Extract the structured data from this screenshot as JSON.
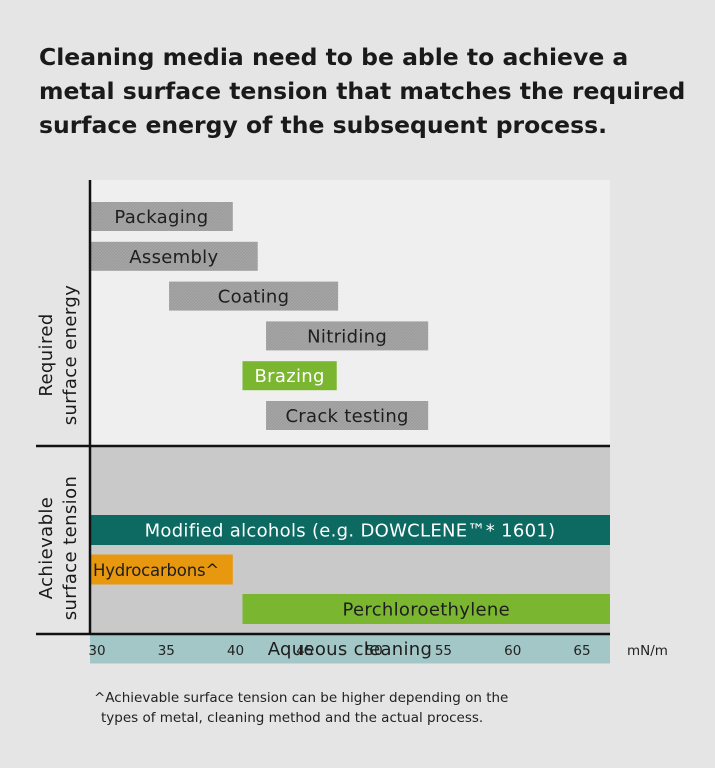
{
  "title": {
    "lines": [
      "Cleaning media need to be able to achieve a",
      "metal surface tension that matches the required",
      "surface energy of the subsequent process."
    ]
  },
  "chart_data": {
    "type": "bar",
    "orientation": "horizontal-range",
    "x_unit": "mN/m",
    "x_ticks": [
      30,
      35,
      40,
      45,
      50,
      55,
      60,
      65
    ],
    "xlim": [
      29.5,
      67
    ],
    "panels": [
      {
        "name": "Required surface energy",
        "label_lines": [
          "Required",
          "surface energy"
        ],
        "bars": [
          {
            "label": "Packaging",
            "start": 29.5,
            "end": 39.8,
            "color": "#9c9c9c"
          },
          {
            "label": "Assembly",
            "start": 29.5,
            "end": 41.6,
            "color": "#9c9c9c"
          },
          {
            "label": "Coating",
            "start": 35.2,
            "end": 47.4,
            "color": "#9c9c9c"
          },
          {
            "label": "Nitriding",
            "start": 42.2,
            "end": 53.9,
            "color": "#9c9c9c"
          },
          {
            "label": "Brazing",
            "start": 40.5,
            "end": 47.3,
            "color": "#7ab62f"
          },
          {
            "label": "Crack testing",
            "start": 42.2,
            "end": 53.9,
            "color": "#9c9c9c"
          }
        ]
      },
      {
        "name": "Achievable surface tension",
        "label_lines": [
          "Achievable",
          "surface tension"
        ],
        "bars": [
          {
            "label": "Modified alcohols (e.g. DOWCLENE™* 1601)",
            "start": 29.5,
            "end": 67,
            "color": "#0c6a62"
          },
          {
            "label": "Hydrocarbons^",
            "start": 29.5,
            "end": 39.8,
            "color": "#e8980e"
          },
          {
            "label": "Perchloroethylene",
            "start": 40.5,
            "end": 67,
            "color": "#7ab62f"
          },
          {
            "label": "Aqueous cleaning",
            "start": 29.5,
            "end": 67,
            "color": "#a3c6c6"
          }
        ]
      }
    ]
  },
  "colors": {
    "page_background": "#e5e5e5",
    "upper_panel": "#efefef",
    "lower_panel": "#c9c9c9",
    "axis": "#111111"
  },
  "footnote": {
    "lines": [
      "^Achievable surface tension can be higher depending on the",
      "types of metal, cleaning method and the actual process."
    ]
  }
}
